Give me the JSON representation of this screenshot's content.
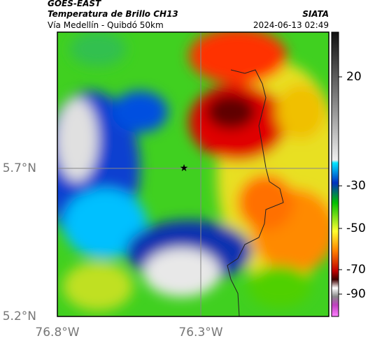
{
  "header": {
    "source": "GOES-EAST",
    "title": "Temperatura de Brillo CH13",
    "subtitle": "Vía Medellín - Quibdó 50km",
    "org": "SIATA",
    "timestamp": "2024-06-13 02:49"
  },
  "map": {
    "lat_labels": [
      "5.7°N",
      "5.2°N"
    ],
    "lon_labels": [
      "76.8°W",
      "76.3°W"
    ]
  },
  "colorbar": {
    "ticks": [
      20,
      -30,
      -50,
      -70,
      -90
    ]
  }
}
